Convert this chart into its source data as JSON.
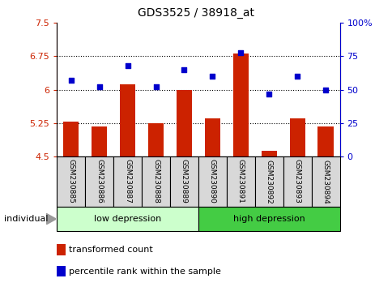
{
  "title": "GDS3525 / 38918_at",
  "samples": [
    "GSM230885",
    "GSM230886",
    "GSM230887",
    "GSM230888",
    "GSM230889",
    "GSM230890",
    "GSM230891",
    "GSM230892",
    "GSM230893",
    "GSM230894"
  ],
  "bar_values": [
    5.28,
    5.18,
    6.12,
    5.24,
    5.99,
    5.35,
    6.82,
    4.63,
    5.35,
    5.17
  ],
  "dot_values": [
    57,
    52,
    68,
    52,
    65,
    60,
    78,
    47,
    60,
    50
  ],
  "ylim": [
    4.5,
    7.5
  ],
  "y2lim": [
    0,
    100
  ],
  "yticks": [
    4.5,
    5.25,
    6.0,
    6.75,
    7.5
  ],
  "ytick_labels": [
    "4.5",
    "5.25",
    "6",
    "6.75",
    "7.5"
  ],
  "y2ticks": [
    0,
    25,
    50,
    75,
    100
  ],
  "y2tick_labels": [
    "0",
    "25",
    "50",
    "75",
    "100%"
  ],
  "bar_color": "#cc2200",
  "dot_color": "#0000cc",
  "grid_lines": [
    5.25,
    6.0,
    6.75
  ],
  "group1_label": "low depression",
  "group2_label": "high depression",
  "group1_color": "#ccffcc",
  "group2_color": "#44cc44",
  "individual_label": "individual",
  "legend_bar_label": "transformed count",
  "legend_dot_label": "percentile rank within the sample",
  "bar_width": 0.55,
  "base_value": 4.5,
  "label_box_color": "#d8d8d8"
}
